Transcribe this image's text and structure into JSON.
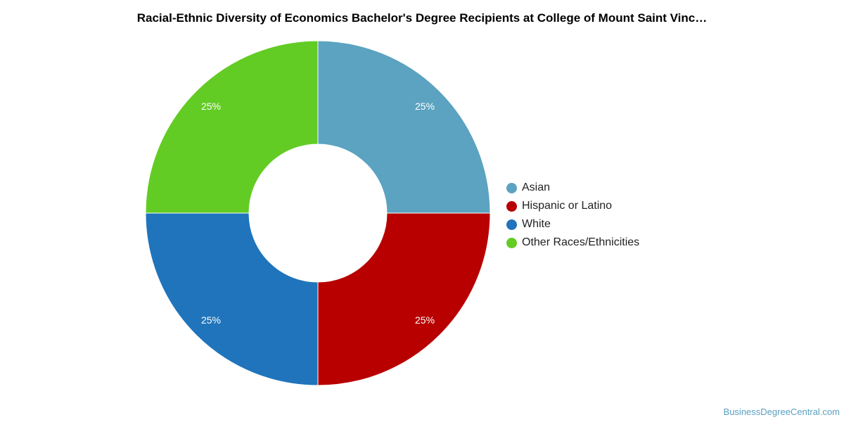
{
  "chart_data": {
    "type": "pie",
    "title": "Racial-Ethnic Diversity of Economics Bachelor's Degree Recipients at College of Mount Saint Vinc…",
    "categories": [
      "Asian",
      "Hispanic or Latino",
      "White",
      "Other Races/Ethnicities"
    ],
    "values": [
      25,
      25,
      25,
      25
    ],
    "labels": [
      "25%",
      "25%",
      "25%",
      "25%"
    ],
    "colors": [
      "#5ba3c0",
      "#b80000",
      "#1f74bb",
      "#62cc24"
    ],
    "donut": true,
    "legend": "right"
  },
  "source": "BusinessDegreeCentral.com"
}
